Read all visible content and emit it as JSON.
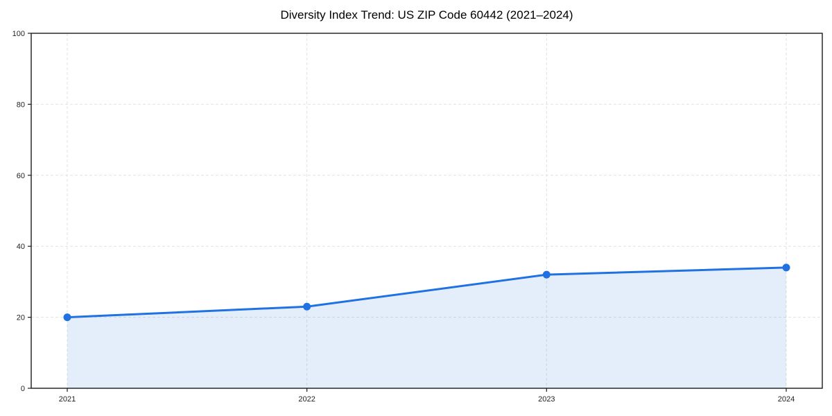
{
  "chart_data": {
    "type": "area",
    "title": "Diversity Index Trend: US ZIP Code 60442 (2021–2024)",
    "categories": [
      "2021",
      "2022",
      "2023",
      "2024"
    ],
    "values": [
      20,
      23,
      32,
      34
    ],
    "xlabel": "",
    "ylabel": "",
    "ylim": [
      0,
      100
    ],
    "yticks": [
      0,
      20,
      40,
      60,
      80,
      100
    ],
    "grid": "dashed, horizontal and vertical at ticks",
    "legend": "none",
    "marker": "circle"
  },
  "style": {
    "line_color": "#2071e2",
    "marker_color": "#2071e2",
    "fill_color": "#2071e2",
    "fill_opacity": "0.12",
    "grid_color": "#e2e2e2",
    "axis_color": "#1a1a1a",
    "tick_label_color": "#222222",
    "background_color": "#ffffff"
  }
}
